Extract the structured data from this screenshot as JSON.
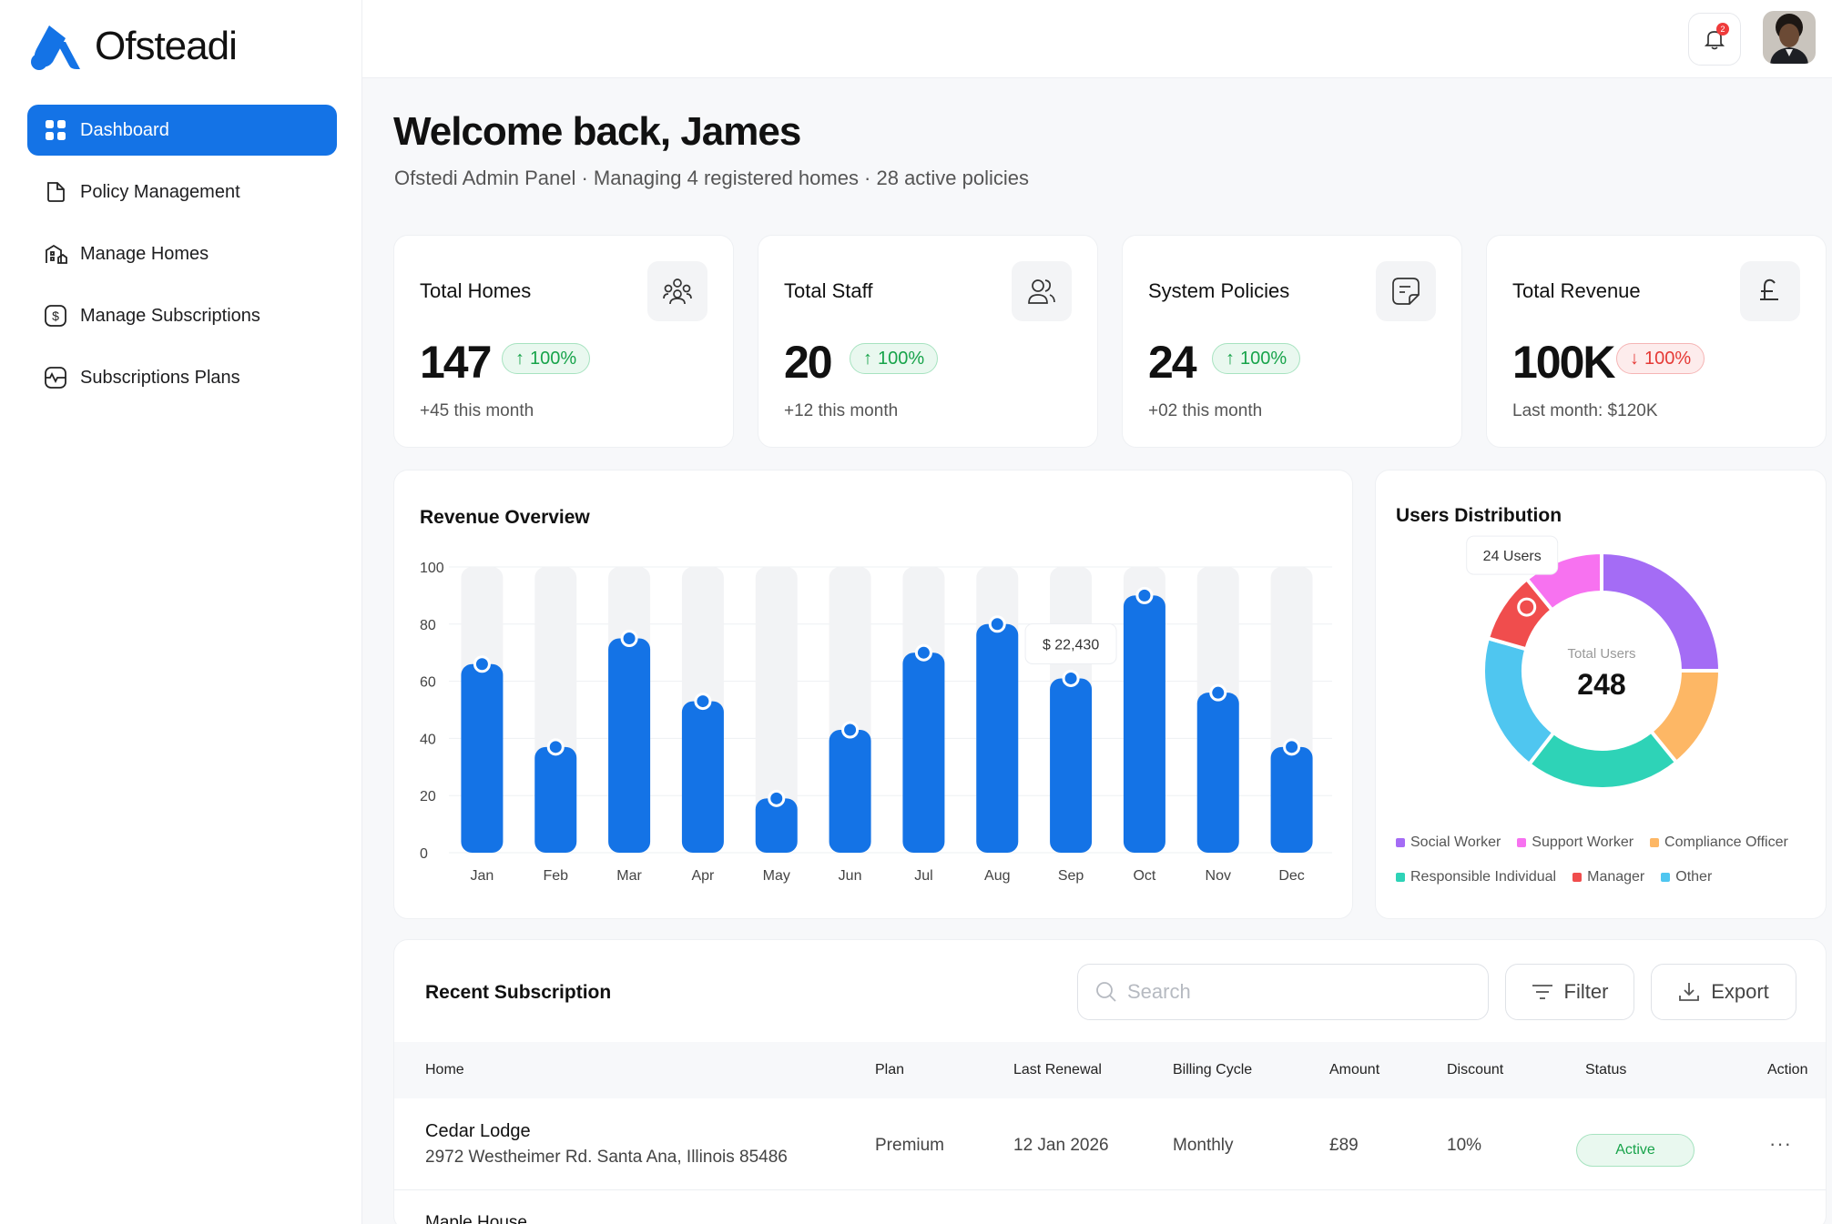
{
  "brand": {
    "name": "Ofsteadi",
    "accent": "#1473e6"
  },
  "sidebar": {
    "items": [
      {
        "label": "Dashboard",
        "icon": "grid-icon",
        "active": true
      },
      {
        "label": "Policy Management",
        "icon": "document-icon",
        "active": false
      },
      {
        "label": "Manage Homes",
        "icon": "building-icon",
        "active": false
      },
      {
        "label": "Manage Subscriptions",
        "icon": "dollar-icon",
        "active": false
      },
      {
        "label": "Subscriptions Plans",
        "icon": "plan-icon",
        "active": false
      }
    ]
  },
  "header": {
    "notification_count": "2",
    "notification_icon": "bell-icon"
  },
  "welcome": {
    "title": "Welcome back, James",
    "subtitle": "Ofstedi Admin Panel · Managing 4 registered homes · 28 active policies"
  },
  "stats": [
    {
      "label": "Total Homes",
      "value": "147",
      "change": "100%",
      "direction": "up",
      "sub": "+45 this month",
      "icon": "users-group-icon"
    },
    {
      "label": "Total Staff",
      "value": "20",
      "change": "100%",
      "direction": "up",
      "sub": "+12 this month",
      "icon": "users-icon"
    },
    {
      "label": "System Policies",
      "value": "24",
      "change": "100%",
      "direction": "up",
      "sub": "+02 this month",
      "icon": "policy-doc-icon"
    },
    {
      "label": "Total Revenue",
      "value": "100K",
      "change": "100%",
      "direction": "down",
      "sub": "Last month: $120K",
      "icon": "pound-icon"
    }
  ],
  "chart_data": [
    {
      "type": "bar",
      "title": "Revenue Overview",
      "categories": [
        "Jan",
        "Feb",
        "Mar",
        "Apr",
        "May",
        "Jun",
        "Jul",
        "Aug",
        "Sep",
        "Oct",
        "Nov",
        "Dec"
      ],
      "values": [
        66,
        37,
        75,
        53,
        19,
        43,
        70,
        80,
        61,
        90,
        56,
        37
      ],
      "ylim": [
        0,
        100
      ],
      "yticks": [
        "0",
        "20",
        "40",
        "60",
        "80",
        "100"
      ],
      "tooltip": {
        "category": "Sep",
        "label": "$ 22,430"
      },
      "bar_color": "#1473e6",
      "track_color": "#f2f3f5"
    },
    {
      "type": "pie",
      "title": "Users Distribution",
      "center_label": "Total Users",
      "center_value": "248",
      "tooltip": "24 Users",
      "slices": [
        {
          "name": "Social Worker",
          "value": 62,
          "color": "#a46cf5"
        },
        {
          "name": "Compliance Officer",
          "value": 35,
          "color": "#fdb765"
        },
        {
          "name": "Responsible Individual",
          "value": 53,
          "color": "#2ed3b7"
        },
        {
          "name": "Other",
          "value": 47,
          "color": "#4fc6f0"
        },
        {
          "name": "Manager",
          "value": 24,
          "color": "#f04d4d"
        },
        {
          "name": "Support Worker",
          "value": 27,
          "color": "#f772f0"
        }
      ],
      "legend_order": [
        "Social Worker",
        "Support Worker",
        "Compliance Officer",
        "Responsible Individual",
        "Manager",
        "Other"
      ]
    }
  ],
  "subscriptions": {
    "title": "Recent Subscription",
    "search_placeholder": "Search",
    "filter_label": "Filter",
    "export_label": "Export",
    "columns": [
      "Home",
      "Plan",
      "Last Renewal",
      "Billing Cycle",
      "Amount",
      "Discount",
      "Status",
      "Action"
    ],
    "rows": [
      {
        "home": "Cedar Lodge",
        "address": "2972 Westheimer Rd. Santa Ana, Illinois 85486",
        "plan": "Premium",
        "last_renewal": "12 Jan 2026",
        "billing_cycle": "Monthly",
        "amount": "£89",
        "discount": "10%",
        "status": "Active",
        "action": "···"
      }
    ],
    "next_row_home": "Maple House"
  }
}
